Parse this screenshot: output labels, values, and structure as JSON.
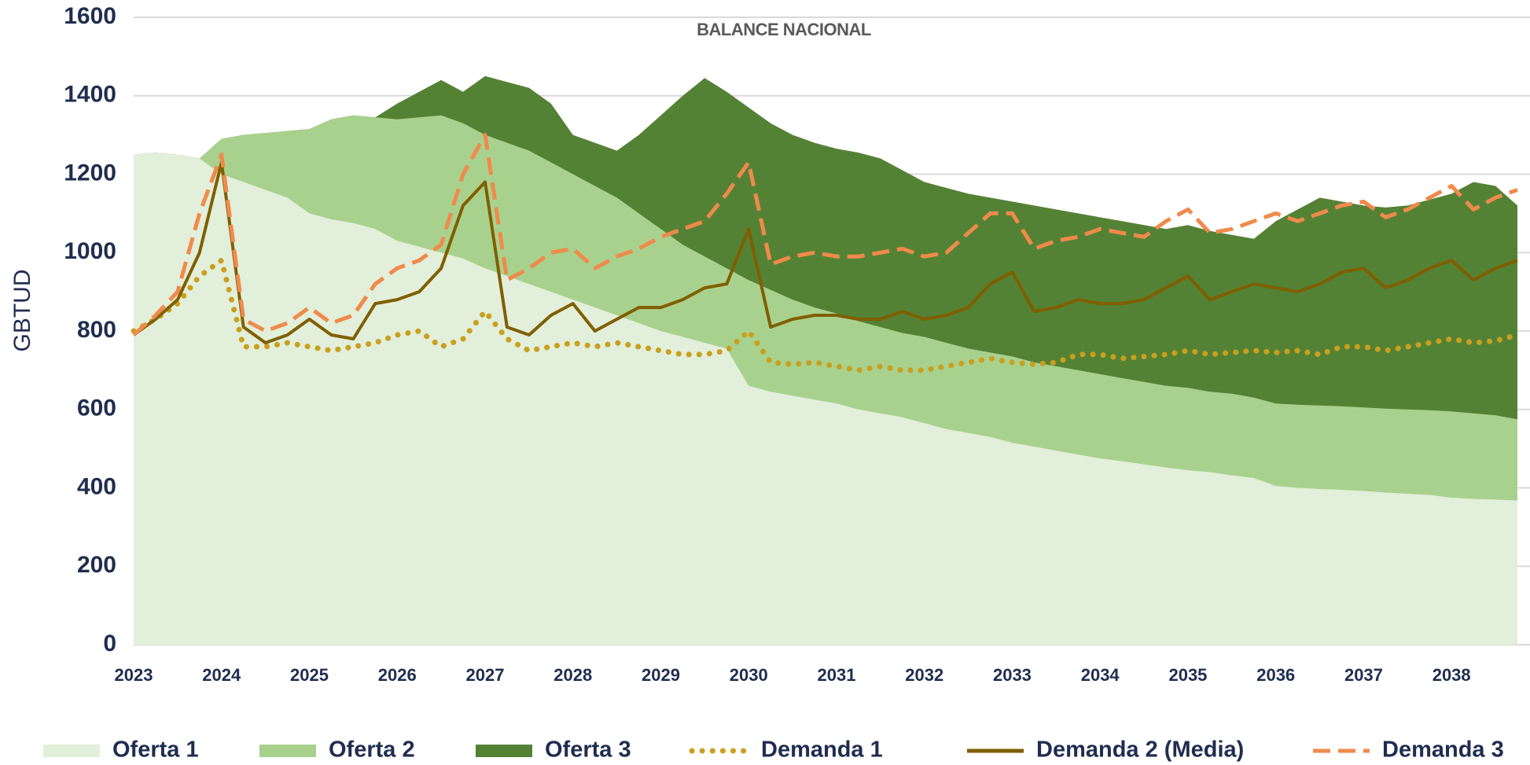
{
  "chart_data": {
    "type": "area_line",
    "title": "BALANCE NACIONAL",
    "y_label": "GBTUD",
    "x": [
      2023,
      2023.25,
      2023.5,
      2023.75,
      2024,
      2024.25,
      2024.5,
      2024.75,
      2025,
      2025.25,
      2025.5,
      2025.75,
      2026,
      2026.25,
      2026.5,
      2026.75,
      2027,
      2027.25,
      2027.5,
      2027.75,
      2028,
      2028.25,
      2028.5,
      2028.75,
      2029,
      2029.25,
      2029.5,
      2029.75,
      2030,
      2030.25,
      2030.5,
      2030.75,
      2031,
      2031.25,
      2031.5,
      2031.75,
      2032,
      2032.25,
      2032.5,
      2032.75,
      2033,
      2033.25,
      2033.5,
      2033.75,
      2034,
      2034.25,
      2034.5,
      2034.75,
      2035,
      2035.25,
      2035.5,
      2035.75,
      2036,
      2036.25,
      2036.5,
      2036.75,
      2037,
      2037.25,
      2037.5,
      2037.75,
      2038,
      2038.25,
      2038.5,
      2038.75
    ],
    "xlim": [
      2023,
      2038.75
    ],
    "xticks": [
      2023,
      2024,
      2025,
      2026,
      2027,
      2028,
      2029,
      2030,
      2031,
      2032,
      2033,
      2034,
      2035,
      2036,
      2037,
      2038
    ],
    "ylim": [
      0,
      1600
    ],
    "yticks": [
      0,
      200,
      400,
      600,
      800,
      1000,
      1200,
      1400,
      1600
    ],
    "grid": true,
    "legend": "bottom",
    "series": [
      {
        "name": "Oferta 1",
        "kind": "area",
        "color": "#e2efda",
        "values": [
          1250,
          1255,
          1250,
          1240,
          1200,
          1180,
          1160,
          1140,
          1100,
          1085,
          1075,
          1060,
          1030,
          1015,
          1000,
          985,
          960,
          940,
          920,
          900,
          880,
          860,
          840,
          820,
          800,
          785,
          770,
          755,
          660,
          645,
          635,
          625,
          615,
          600,
          590,
          580,
          565,
          550,
          540,
          530,
          515,
          505,
          495,
          485,
          475,
          468,
          460,
          452,
          445,
          440,
          432,
          425,
          405,
          400,
          397,
          395,
          392,
          388,
          385,
          382,
          375,
          372,
          370,
          368
        ]
      },
      {
        "name": "Oferta 2",
        "kind": "area",
        "color": "#a9d18e",
        "values": [
          1250,
          1255,
          1250,
          1240,
          1290,
          1300,
          1305,
          1310,
          1315,
          1340,
          1350,
          1345,
          1340,
          1345,
          1350,
          1330,
          1300,
          1280,
          1260,
          1230,
          1200,
          1170,
          1140,
          1100,
          1060,
          1020,
          990,
          960,
          930,
          905,
          880,
          860,
          845,
          825,
          810,
          795,
          785,
          770,
          755,
          745,
          735,
          720,
          710,
          700,
          690,
          680,
          670,
          660,
          655,
          645,
          640,
          630,
          615,
          612,
          610,
          608,
          605,
          602,
          600,
          598,
          595,
          590,
          585,
          575
        ]
      },
      {
        "name": "Oferta 3",
        "kind": "area",
        "color": "#548235",
        "values": [
          1250,
          1255,
          1250,
          1240,
          1290,
          1300,
          1305,
          1310,
          1315,
          1340,
          1350,
          1345,
          1380,
          1410,
          1440,
          1410,
          1450,
          1435,
          1420,
          1380,
          1300,
          1280,
          1260,
          1300,
          1350,
          1400,
          1445,
          1410,
          1370,
          1330,
          1300,
          1280,
          1265,
          1255,
          1240,
          1210,
          1180,
          1165,
          1150,
          1140,
          1130,
          1120,
          1110,
          1100,
          1090,
          1080,
          1070,
          1060,
          1070,
          1055,
          1045,
          1035,
          1080,
          1110,
          1140,
          1130,
          1120,
          1115,
          1120,
          1135,
          1150,
          1180,
          1170,
          1120
        ]
      },
      {
        "name": "Demanda 1",
        "kind": "line",
        "dash": "dotted",
        "color": "#c9a01e",
        "values": [
          800,
          830,
          870,
          940,
          980,
          760,
          760,
          770,
          760,
          750,
          760,
          770,
          790,
          800,
          760,
          780,
          850,
          780,
          750,
          760,
          770,
          760,
          770,
          760,
          750,
          740,
          740,
          750,
          800,
          720,
          715,
          720,
          710,
          700,
          710,
          700,
          700,
          710,
          720,
          730,
          720,
          715,
          720,
          740,
          740,
          730,
          735,
          740,
          750,
          740,
          745,
          750,
          745,
          750,
          740,
          760,
          760,
          750,
          760,
          770,
          780,
          770,
          775,
          790
        ]
      },
      {
        "name": "Demanda 2 (Media)",
        "kind": "line",
        "dash": "solid",
        "color": "#7f5f00",
        "values": [
          790,
          830,
          880,
          1000,
          1230,
          810,
          770,
          790,
          830,
          790,
          780,
          870,
          880,
          900,
          960,
          1120,
          1180,
          810,
          790,
          840,
          870,
          800,
          830,
          860,
          860,
          880,
          910,
          920,
          1060,
          810,
          830,
          840,
          840,
          830,
          830,
          850,
          830,
          840,
          860,
          920,
          950,
          850,
          860,
          880,
          870,
          870,
          880,
          910,
          940,
          880,
          900,
          920,
          910,
          900,
          920,
          950,
          960,
          910,
          930,
          960,
          980,
          930,
          960,
          980
        ]
      },
      {
        "name": "Demanda 3",
        "kind": "line",
        "dash": "dashed",
        "color": "#f08a4b",
        "values": [
          790,
          840,
          900,
          1100,
          1250,
          830,
          800,
          820,
          860,
          820,
          840,
          920,
          960,
          980,
          1020,
          1200,
          1300,
          930,
          960,
          1000,
          1010,
          960,
          990,
          1010,
          1040,
          1060,
          1080,
          1150,
          1230,
          970,
          990,
          1000,
          990,
          990,
          1000,
          1010,
          990,
          1000,
          1050,
          1100,
          1100,
          1010,
          1030,
          1040,
          1060,
          1050,
          1040,
          1080,
          1110,
          1050,
          1060,
          1080,
          1100,
          1080,
          1100,
          1120,
          1130,
          1090,
          1110,
          1140,
          1170,
          1110,
          1140,
          1160
        ]
      }
    ]
  }
}
